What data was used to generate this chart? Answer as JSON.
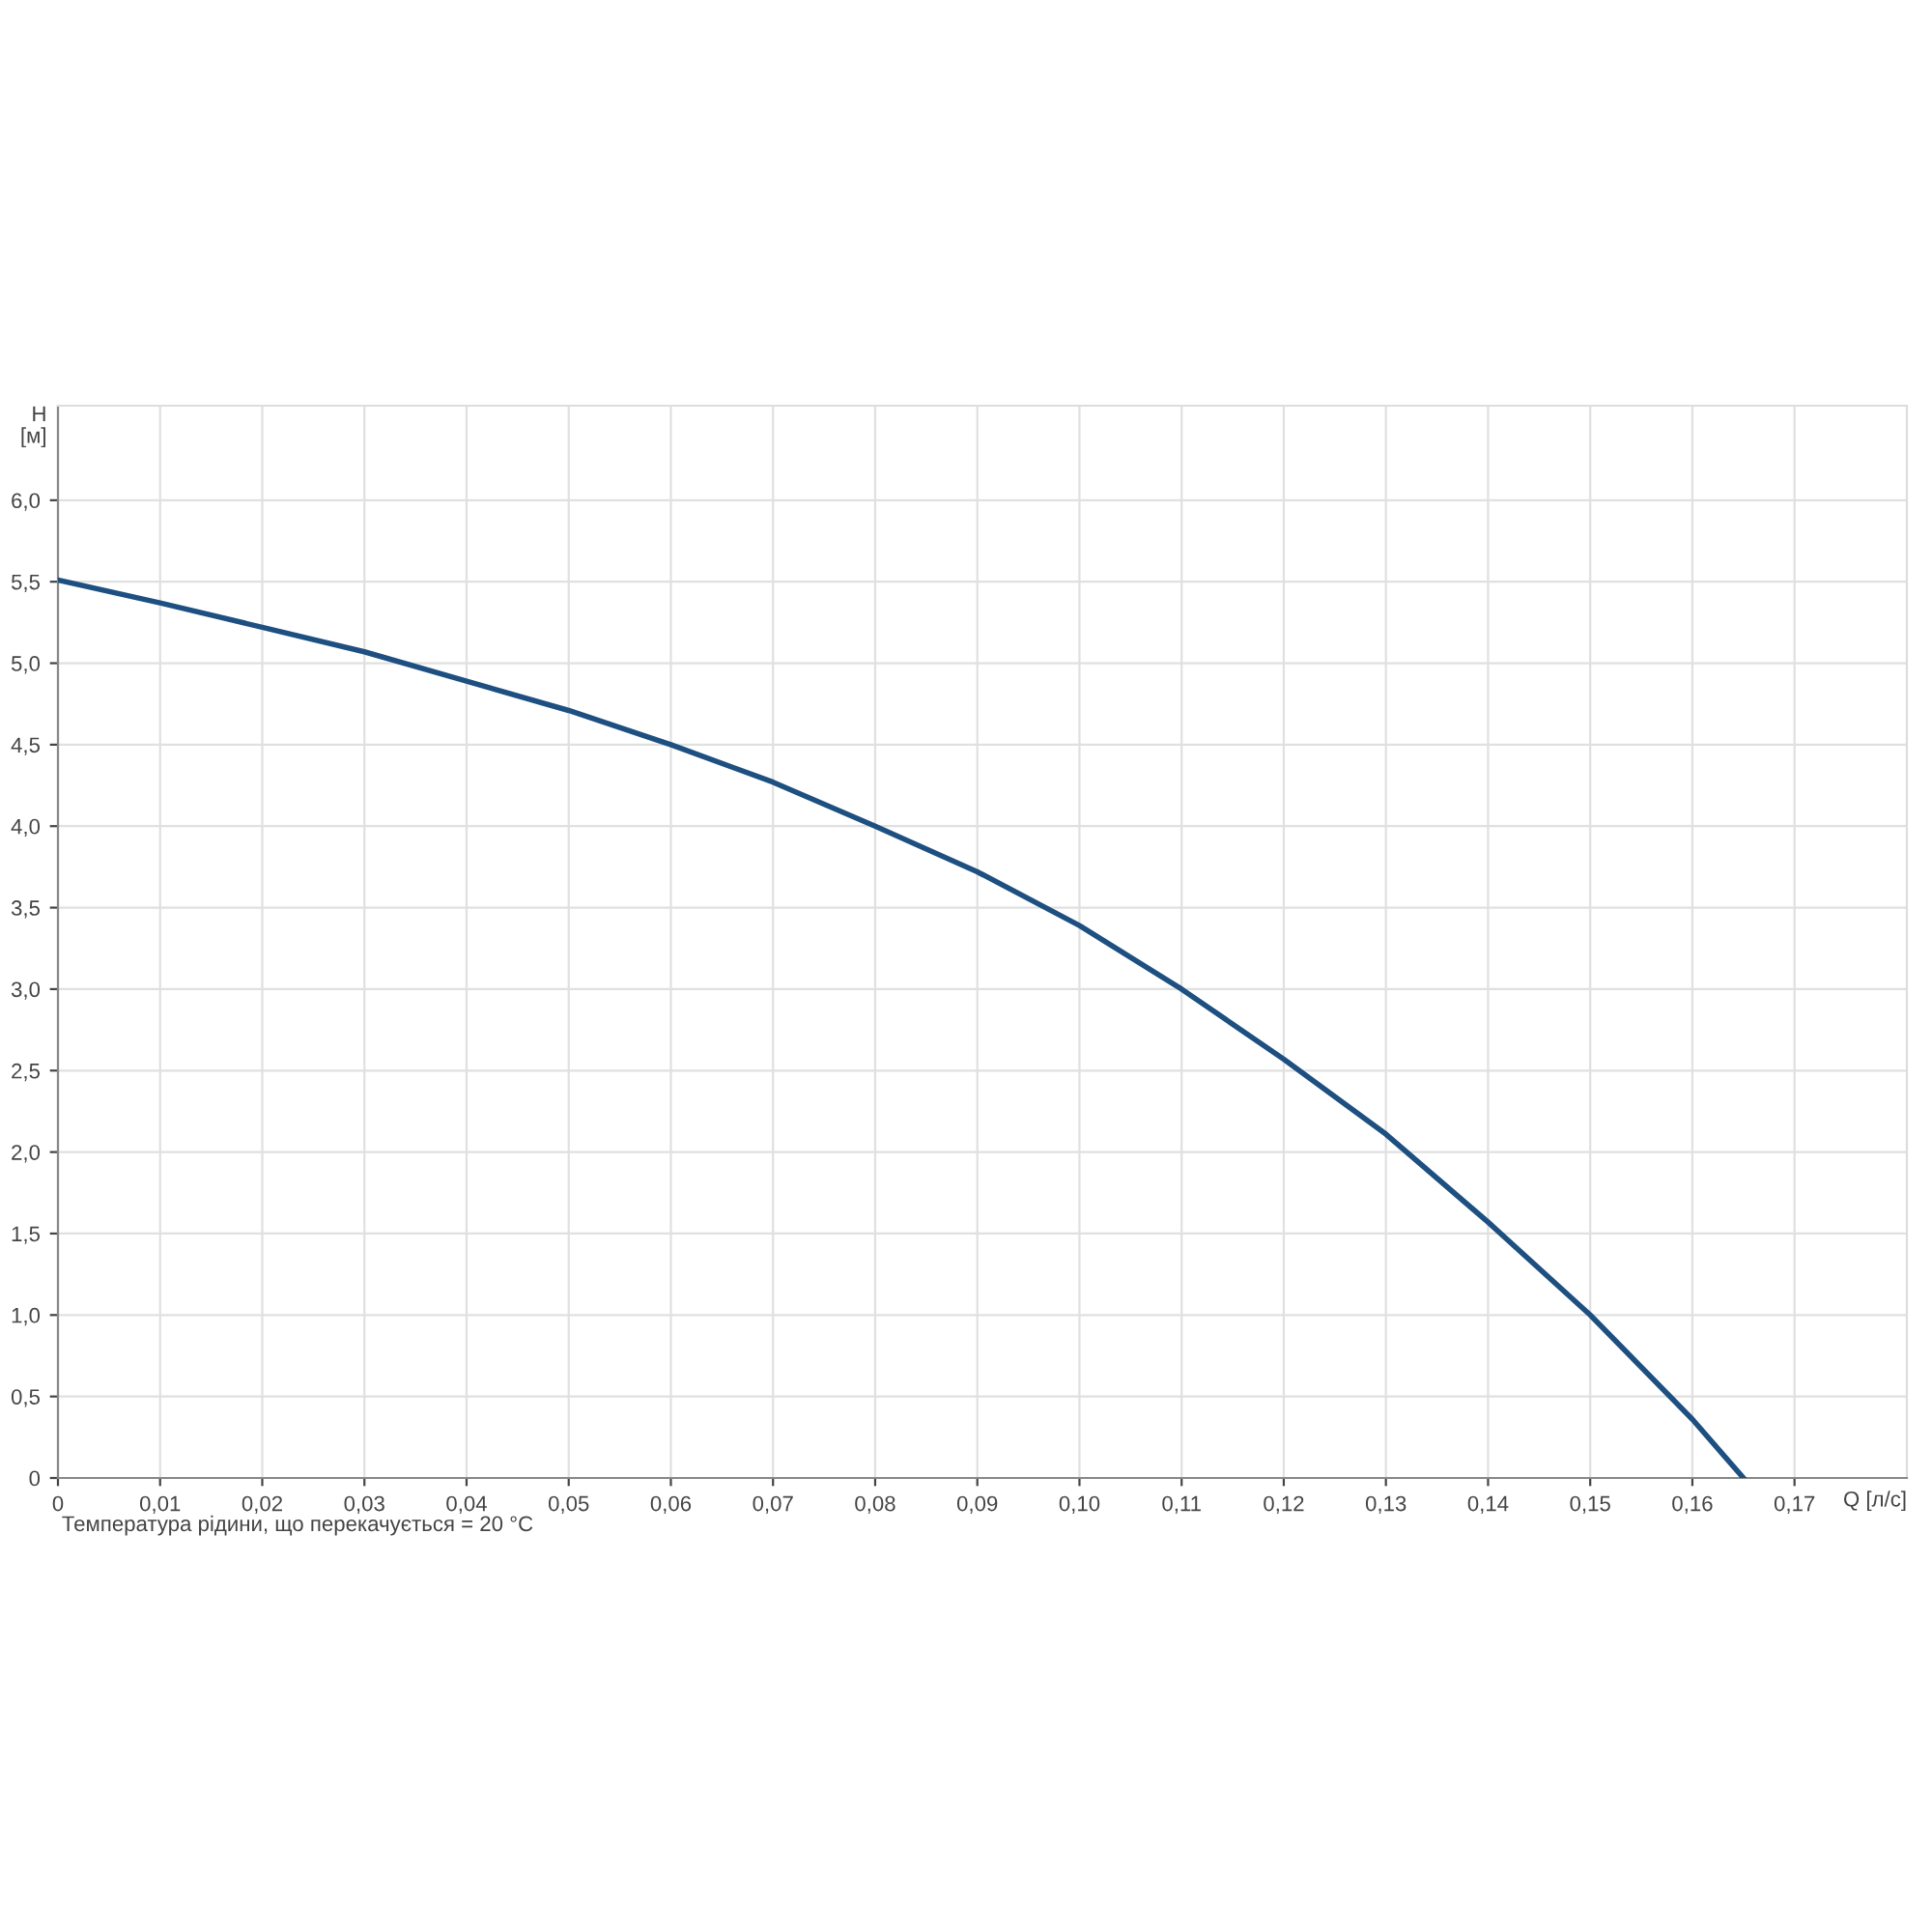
{
  "chart_data": {
    "type": "line",
    "xlabel": "Q [л/с]",
    "ylabel": "H\n[м]",
    "annotations": [
      "Температура рідини, що перекачується = 20 °C"
    ],
    "x": [
      0,
      0.01,
      0.02,
      0.03,
      0.04,
      0.05,
      0.06,
      0.07,
      0.08,
      0.09,
      0.1,
      0.11,
      0.12,
      0.13,
      0.14,
      0.15,
      0.16,
      0.165
    ],
    "series": [
      {
        "color": "#1d4f80",
        "values": [
          5.51,
          5.37,
          5.22,
          5.07,
          4.89,
          4.71,
          4.5,
          4.27,
          4.0,
          3.72,
          3.39,
          3.0,
          2.57,
          2.11,
          1.57,
          1.0,
          0.36,
          0.0
        ]
      }
    ],
    "xlim": [
      0,
      0.181
    ],
    "ylim": [
      0,
      6.58
    ],
    "xticks": [
      0,
      {
        "value": 0.01,
        "label": "0,01"
      },
      {
        "value": 0.02,
        "label": "0,02"
      },
      {
        "value": 0.03,
        "label": "0,03"
      },
      {
        "value": 0.04,
        "label": "0,04"
      },
      {
        "value": 0.05,
        "label": "0,05"
      },
      {
        "value": 0.06,
        "label": "0,06"
      },
      {
        "value": 0.07,
        "label": "0,07"
      },
      {
        "value": 0.08,
        "label": "0,08"
      },
      {
        "value": 0.09,
        "label": "0,09"
      },
      {
        "value": 0.1,
        "label": "0,10"
      },
      {
        "value": 0.11,
        "label": "0,11"
      },
      {
        "value": 0.12,
        "label": "0,12"
      },
      {
        "value": 0.13,
        "label": "0,13"
      },
      {
        "value": 0.14,
        "label": "0,14"
      },
      {
        "value": 0.15,
        "label": "0,15"
      },
      {
        "value": 0.16,
        "label": "0,16"
      },
      {
        "value": 0.17,
        "label": "0,17"
      }
    ],
    "yticks": [
      0,
      {
        "value": 0.5,
        "label": "0,5"
      },
      {
        "value": 1.0,
        "label": "1,0"
      },
      {
        "value": 1.5,
        "label": "1,5"
      },
      {
        "value": 2.0,
        "label": "2,0"
      },
      {
        "value": 2.5,
        "label": "2,5"
      },
      {
        "value": 3.0,
        "label": "3,0"
      },
      {
        "value": 3.5,
        "label": "3,5"
      },
      {
        "value": 4.0,
        "label": "4,0"
      },
      {
        "value": 4.5,
        "label": "4,5"
      },
      {
        "value": 5.0,
        "label": "5,0"
      },
      {
        "value": 5.5,
        "label": "5,5"
      },
      {
        "value": 6.0,
        "label": "6,0"
      }
    ],
    "grid": true,
    "marker": "none",
    "line_style": "solid"
  }
}
